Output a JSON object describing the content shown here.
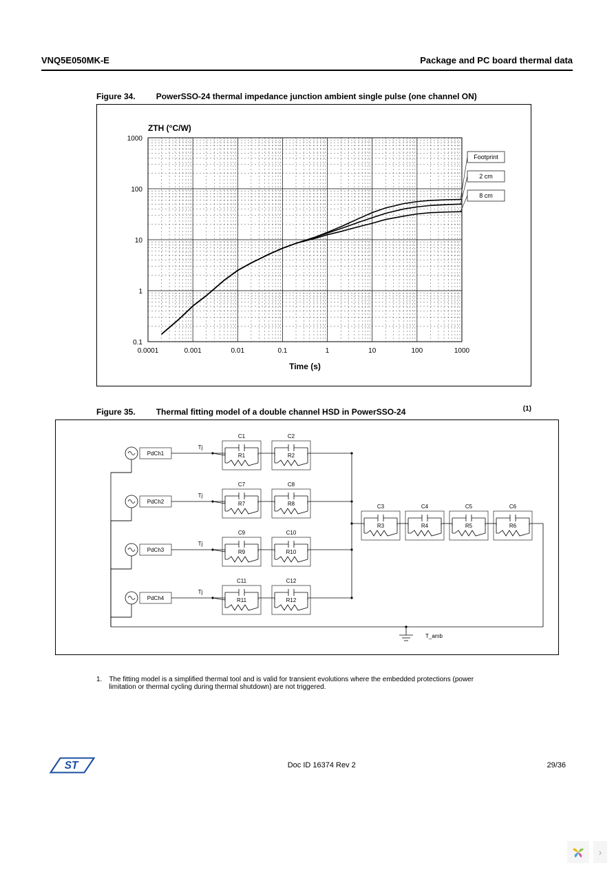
{
  "header": {
    "left": "VNQ5E050MK-E",
    "right": "Package and PC board thermal data"
  },
  "figure34": {
    "caption_num": "Figure 34.",
    "caption_text": "PowerSSO-24 thermal impedance junction ambient single pulse (one channel ON)",
    "type": "line-loglog",
    "y_label": "ZTH (°C/W)",
    "x_label": "Time (s)",
    "background_color": "#ffffff",
    "grid_major_color": "#000000",
    "grid_minor_dash": "2 3",
    "xlim": [
      0.0001,
      1000
    ],
    "ylim": [
      0.1,
      1000
    ],
    "x_decade_labels": [
      "0.0001",
      "0.001",
      "0.01",
      "0.1",
      "1",
      "10",
      "100",
      "1000"
    ],
    "y_decade_labels": [
      "0.1",
      "1",
      "10",
      "100",
      "1000"
    ],
    "legend": [
      {
        "label": "Footprint"
      },
      {
        "label": "2 cm"
      },
      {
        "label": "8 cm"
      }
    ],
    "series": [
      {
        "name": "Footprint",
        "stroke": "#000000",
        "stroke_width": 1.6,
        "points": [
          [
            0.0002,
            0.14
          ],
          [
            0.0003,
            0.19
          ],
          [
            0.0005,
            0.28
          ],
          [
            0.001,
            0.5
          ],
          [
            0.002,
            0.8
          ],
          [
            0.005,
            1.6
          ],
          [
            0.01,
            2.5
          ],
          [
            0.02,
            3.5
          ],
          [
            0.05,
            5.2
          ],
          [
            0.1,
            6.8
          ],
          [
            0.2,
            8.5
          ],
          [
            0.5,
            11
          ],
          [
            1,
            14
          ],
          [
            2,
            18
          ],
          [
            5,
            26
          ],
          [
            10,
            34
          ],
          [
            20,
            42
          ],
          [
            50,
            51
          ],
          [
            100,
            56
          ],
          [
            200,
            59
          ],
          [
            500,
            61
          ],
          [
            1000,
            62
          ]
        ]
      },
      {
        "name": "2 cm",
        "stroke": "#000000",
        "stroke_width": 1.6,
        "points": [
          [
            0.0002,
            0.14
          ],
          [
            0.0003,
            0.19
          ],
          [
            0.0005,
            0.28
          ],
          [
            0.001,
            0.5
          ],
          [
            0.002,
            0.8
          ],
          [
            0.005,
            1.6
          ],
          [
            0.01,
            2.5
          ],
          [
            0.02,
            3.5
          ],
          [
            0.05,
            5.2
          ],
          [
            0.1,
            6.8
          ],
          [
            0.2,
            8.5
          ],
          [
            0.5,
            11
          ],
          [
            1,
            13.5
          ],
          [
            2,
            16.5
          ],
          [
            5,
            22
          ],
          [
            10,
            27
          ],
          [
            20,
            33
          ],
          [
            50,
            40
          ],
          [
            100,
            44
          ],
          [
            200,
            47
          ],
          [
            500,
            49
          ],
          [
            1000,
            50
          ]
        ]
      },
      {
        "name": "8 cm",
        "stroke": "#000000",
        "stroke_width": 1.6,
        "points": [
          [
            0.0002,
            0.14
          ],
          [
            0.0003,
            0.19
          ],
          [
            0.0005,
            0.28
          ],
          [
            0.001,
            0.5
          ],
          [
            0.002,
            0.8
          ],
          [
            0.005,
            1.6
          ],
          [
            0.01,
            2.5
          ],
          [
            0.02,
            3.5
          ],
          [
            0.05,
            5.2
          ],
          [
            0.1,
            6.8
          ],
          [
            0.2,
            8.5
          ],
          [
            0.5,
            10.5
          ],
          [
            1,
            12.5
          ],
          [
            2,
            14.5
          ],
          [
            5,
            18
          ],
          [
            10,
            21
          ],
          [
            20,
            25
          ],
          [
            50,
            29
          ],
          [
            100,
            32
          ],
          [
            200,
            34
          ],
          [
            500,
            35
          ],
          [
            1000,
            35.5
          ]
        ]
      }
    ]
  },
  "figure35": {
    "caption_num": "Figure 35.",
    "caption_text": "Thermal fitting model of a double channel HSD in PowerSSO-24",
    "sup_marker": "(1)",
    "type": "circuit",
    "background_color": "#ffffff",
    "stroke": "#000000",
    "label_fontsize": 8,
    "channels": [
      {
        "source": "PdCh1",
        "tj": "Tj",
        "rc": [
          {
            "c": "C1",
            "r": "R1"
          },
          {
            "c": "C2",
            "r": "R2"
          }
        ]
      },
      {
        "source": "PdCh2",
        "tj": "Tj",
        "rc": [
          {
            "c": "C7",
            "r": "R7"
          },
          {
            "c": "C8",
            "r": "R8"
          }
        ]
      },
      {
        "source": "PdCh3",
        "tj": "Tj",
        "rc": [
          {
            "c": "C9",
            "r": "R9"
          },
          {
            "c": "C10",
            "r": "R10"
          }
        ]
      },
      {
        "source": "PdCh4",
        "tj": "Tj",
        "rc": [
          {
            "c": "C11",
            "r": "R11"
          },
          {
            "c": "C12",
            "r": "R12"
          }
        ]
      }
    ],
    "common_chain": [
      {
        "c": "C3",
        "r": "R3"
      },
      {
        "c": "C4",
        "r": "R4"
      },
      {
        "c": "C5",
        "r": "R5"
      },
      {
        "c": "C6",
        "r": "R6"
      }
    ],
    "ground_label": "T_amb"
  },
  "footnote": {
    "num": "1.",
    "text": "The fitting model is a simplified thermal tool and is valid for transient evolutions where the embedded protections (power limitation or thermal cycling during thermal shutdown) are not triggered."
  },
  "footer": {
    "doc_id": "Doc ID 16374 Rev 2",
    "page": "29/36"
  }
}
